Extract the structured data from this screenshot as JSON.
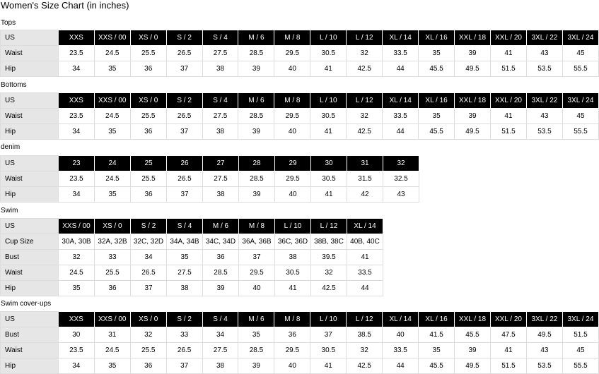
{
  "title": "Women's Size Chart  (in inches)",
  "sections": [
    {
      "label": "Tops",
      "rows": [
        {
          "label": "US",
          "cells": [
            "XXS",
            "XXS / 00",
            "XS / 0",
            "S / 2",
            "S / 4",
            "M / 6",
            "M / 8",
            "L / 10",
            "L / 12",
            "XL / 14",
            "XL / 16",
            "XXL / 18",
            "XXL / 20",
            "3XL / 22",
            "3XL / 24"
          ]
        },
        {
          "label": "Waist",
          "cells": [
            "23.5",
            "24.5",
            "25.5",
            "26.5",
            "27.5",
            "28.5",
            "29.5",
            "30.5",
            "32",
            "33.5",
            "35",
            "39",
            "41",
            "43",
            "45"
          ]
        },
        {
          "label": "Hip",
          "cells": [
            "34",
            "35",
            "36",
            "37",
            "38",
            "39",
            "40",
            "41",
            "42.5",
            "44",
            "45.5",
            "49.5",
            "51.5",
            "53.5",
            "55.5"
          ]
        }
      ]
    },
    {
      "label": "Bottoms",
      "rows": [
        {
          "label": "US",
          "cells": [
            "XXS",
            "XXS / 00",
            "XS / 0",
            "S / 2",
            "S / 4",
            "M / 6",
            "M / 8",
            "L / 10",
            "L / 12",
            "XL / 14",
            "XL / 16",
            "XXL / 18",
            "XXL / 20",
            "3XL / 22",
            "3XL / 24"
          ]
        },
        {
          "label": "Waist",
          "cells": [
            "23.5",
            "24.5",
            "25.5",
            "26.5",
            "27.5",
            "28.5",
            "29.5",
            "30.5",
            "32",
            "33.5",
            "35",
            "39",
            "41",
            "43",
            "45"
          ]
        },
        {
          "label": "Hip",
          "cells": [
            "34",
            "35",
            "36",
            "37",
            "38",
            "39",
            "40",
            "41",
            "42.5",
            "44",
            "45.5",
            "49.5",
            "51.5",
            "53.5",
            "55.5"
          ]
        }
      ]
    },
    {
      "label": "denim",
      "rows": [
        {
          "label": "US",
          "cells": [
            "23",
            "24",
            "25",
            "26",
            "27",
            "28",
            "29",
            "30",
            "31",
            "32"
          ]
        },
        {
          "label": "Waist",
          "cells": [
            "23.5",
            "24.5",
            "25.5",
            "26.5",
            "27.5",
            "28.5",
            "29.5",
            "30.5",
            "31.5",
            "32.5"
          ]
        },
        {
          "label": "Hip",
          "cells": [
            "34",
            "35",
            "36",
            "37",
            "38",
            "39",
            "40",
            "41",
            "42",
            "43"
          ]
        }
      ]
    },
    {
      "label": "Swim",
      "rows": [
        {
          "label": "US",
          "cells": [
            "XXS / 00",
            "XS / 0",
            "S / 2",
            "S / 4",
            "M / 6",
            "M / 8",
            "L / 10",
            "L / 12",
            "XL / 14"
          ]
        },
        {
          "label": "Cup Size",
          "cells": [
            "30A, 30B",
            "32A, 32B",
            "32C, 32D",
            "34A, 34B",
            "34C, 34D",
            "36A, 36B",
            "36C, 36D",
            "38B, 38C",
            "40B, 40C"
          ]
        },
        {
          "label": "Bust",
          "cells": [
            "32",
            "33",
            "34",
            "35",
            "36",
            "37",
            "38",
            "39.5",
            "41"
          ]
        },
        {
          "label": "Waist",
          "cells": [
            "24.5",
            "25.5",
            "26.5",
            "27.5",
            "28.5",
            "29.5",
            "30.5",
            "32",
            "33.5"
          ]
        },
        {
          "label": "Hip",
          "cells": [
            "35",
            "36",
            "37",
            "38",
            "39",
            "40",
            "41",
            "42.5",
            "44"
          ]
        }
      ]
    },
    {
      "label": "Swim cover-ups",
      "rows": [
        {
          "label": "US",
          "cells": [
            "XXS",
            "XXS / 00",
            "XS / 0",
            "S / 2",
            "S / 4",
            "M / 6",
            "M / 8",
            "L / 10",
            "L / 12",
            "XL / 14",
            "XL / 16",
            "XXL / 18",
            "XXL / 20",
            "3XL / 22",
            "3XL / 24"
          ]
        },
        {
          "label": "Bust",
          "cells": [
            "30",
            "31",
            "32",
            "33",
            "34",
            "35",
            "36",
            "37",
            "38.5",
            "40",
            "41.5",
            "45.5",
            "47.5",
            "49.5",
            "51.5"
          ]
        },
        {
          "label": "Waist",
          "cells": [
            "23.5",
            "24.5",
            "25.5",
            "26.5",
            "27.5",
            "28.5",
            "29.5",
            "30.5",
            "32",
            "33.5",
            "35",
            "39",
            "41",
            "43",
            "45"
          ]
        },
        {
          "label": "Hip",
          "cells": [
            "34",
            "35",
            "36",
            "37",
            "38",
            "39",
            "40",
            "41",
            "42.5",
            "44",
            "45.5",
            "49.5",
            "51.5",
            "53.5",
            "55.5"
          ]
        }
      ]
    }
  ]
}
